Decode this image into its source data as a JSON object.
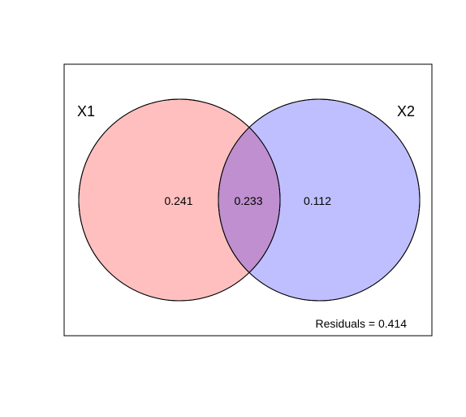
{
  "venn": {
    "sets": {
      "left": {
        "name": "X1",
        "color": "#ff0000"
      },
      "right": {
        "name": "X2",
        "color": "#0000ff"
      }
    },
    "regions": {
      "left_only": "0.241",
      "intersection": "0.233",
      "right_only": "0.112"
    },
    "residuals_text": "Residuals = 0.414",
    "fill_opacity": 0.25
  }
}
